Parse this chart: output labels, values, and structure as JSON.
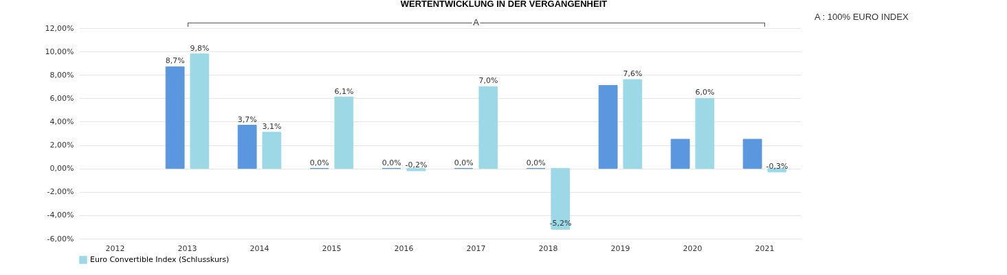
{
  "chart_data": {
    "type": "bar",
    "title": "WERTENTWICKLUNG IN DER VERGANGENHEIT",
    "categories": [
      "2012",
      "2013",
      "2014",
      "2015",
      "2016",
      "2017",
      "2018",
      "2019",
      "2020",
      "2021"
    ],
    "series": [
      {
        "color": "#5b97de",
        "values": [
          null,
          8.7,
          3.7,
          0.0,
          0.0,
          0.0,
          0.0,
          7.1,
          2.5,
          2.5
        ],
        "value_labels": [
          null,
          "8,7%",
          "3,7%",
          "0,0%",
          "0,0%",
          "0,0%",
          "0,0%",
          null,
          null,
          null
        ]
      },
      {
        "name": "Euro Convertible Index (Schlusskurs)",
        "color": "#9dd8e6",
        "values": [
          null,
          9.8,
          3.1,
          6.1,
          -0.2,
          7.0,
          -5.2,
          7.6,
          6.0,
          -0.3
        ],
        "value_labels": [
          null,
          "9,8%",
          "3,1%",
          "6,1%",
          "-0,2%",
          "7,0%",
          "-5,2%",
          "7,6%",
          "6,0%",
          "-0,3%"
        ]
      }
    ],
    "ylim": [
      -6,
      12
    ],
    "yticks": [
      {
        "value": -6,
        "label": "-6,00%"
      },
      {
        "value": -4,
        "label": "-4,00%"
      },
      {
        "value": -2,
        "label": "-2,00%"
      },
      {
        "value": 0,
        "label": "0,00%"
      },
      {
        "value": 2,
        "label": "2,00%"
      },
      {
        "value": 4,
        "label": "4,00%"
      },
      {
        "value": 6,
        "label": "6,00%"
      },
      {
        "value": 8,
        "label": "8,00%"
      },
      {
        "value": 10,
        "label": "10,00%"
      },
      {
        "value": 12,
        "label": "12,00%"
      }
    ],
    "grid": "y",
    "legend": "bottom",
    "annotations": [
      "A",
      "A : 100% EURO INDEX"
    ]
  }
}
